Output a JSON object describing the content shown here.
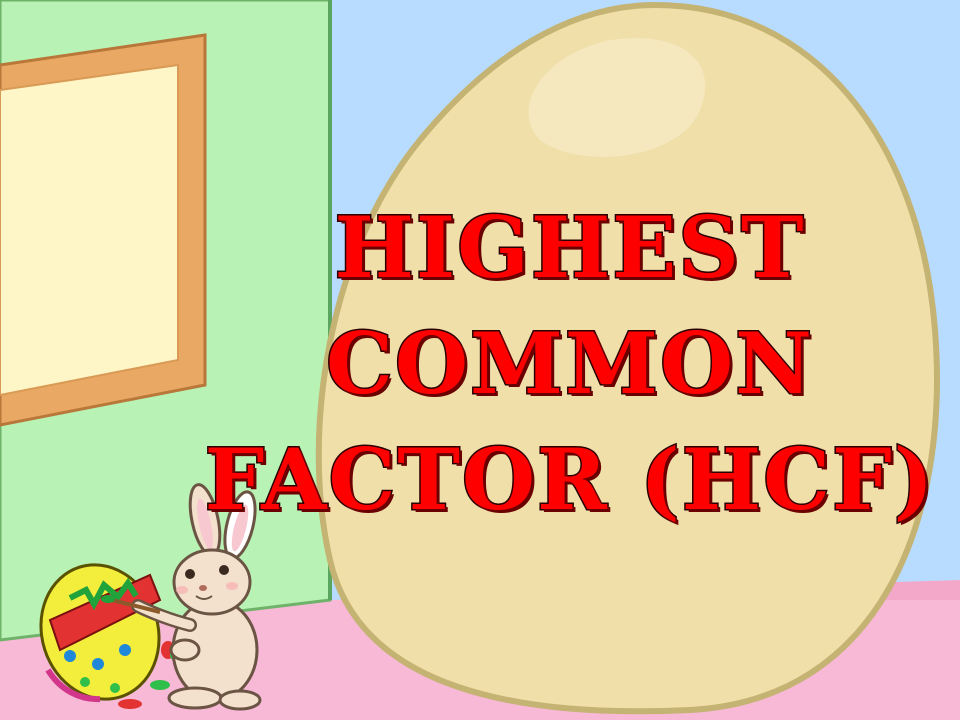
{
  "slide": {
    "title_lines": [
      "HIGHEST",
      "COMMON",
      "FACTOR (HCF)"
    ]
  },
  "colors": {
    "title": "#ff0000",
    "wall_left": "#b8f2b4",
    "wall_right": "#b8dcff",
    "floor": "#f7b9d6",
    "egg": "#f1dfaa",
    "frame": "#e9a863",
    "picture": "#fff6c8"
  },
  "icons": {
    "bunny": "bunny-painting-egg",
    "easter_egg": "decorated-easter-egg"
  }
}
